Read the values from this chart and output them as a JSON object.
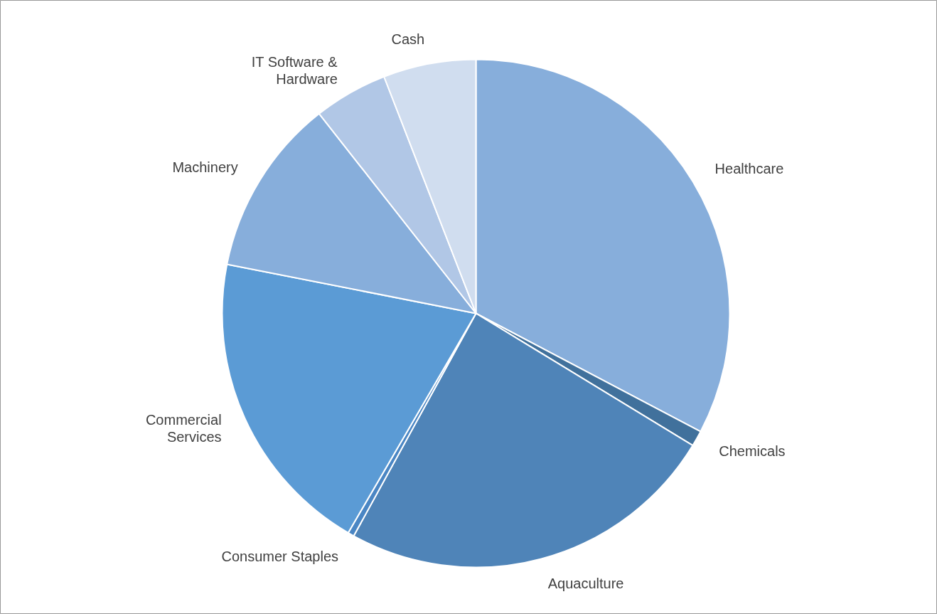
{
  "chart_data": {
    "type": "pie",
    "categories": [
      "Healthcare",
      "Chemicals",
      "Aquaculture",
      "Consumer Staples",
      "Commercial\nServices",
      "Machinery",
      "IT Software &\nHardware",
      "Cash"
    ],
    "values": [
      32.7,
      1.0,
      24.3,
      0.4,
      19.7,
      11.3,
      4.7,
      5.9
    ],
    "colors": [
      "#87aedb",
      "#41719c",
      "#4f84b8",
      "#4a86c4",
      "#5b9bd5",
      "#87aedb",
      "#b1c7e6",
      "#d0ddef"
    ],
    "legend": false
  }
}
